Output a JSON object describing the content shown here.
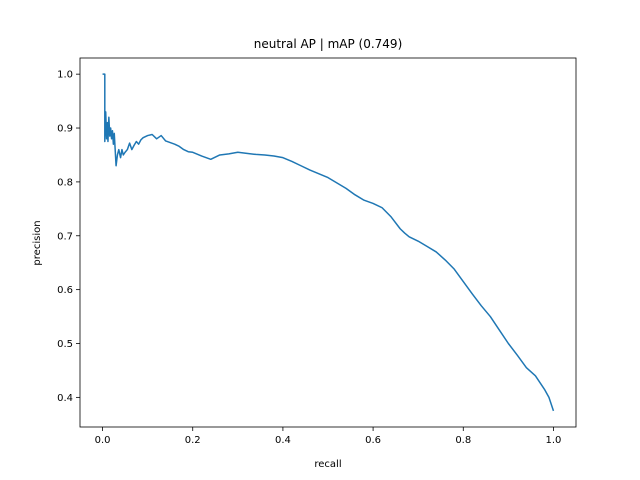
{
  "chart_data": {
    "type": "line",
    "title": "neutral AP | mAP (0.749)",
    "xlabel": "recall",
    "ylabel": "precision",
    "xlim": [
      -0.05,
      1.05
    ],
    "ylim": [
      0.345,
      1.03
    ],
    "xticks": [
      0.0,
      0.2,
      0.4,
      0.6,
      0.8,
      1.0
    ],
    "yticks": [
      0.4,
      0.5,
      0.6,
      0.7,
      0.8,
      0.9,
      1.0
    ],
    "xtick_labels": [
      "0.0",
      "0.2",
      "0.4",
      "0.6",
      "0.8",
      "1.0"
    ],
    "ytick_labels": [
      "0.4",
      "0.5",
      "0.6",
      "0.7",
      "0.8",
      "0.9",
      "1.0"
    ],
    "grid": false,
    "line_color": "#1f77b4",
    "series": [
      {
        "x": [
          0.0,
          0.005,
          0.005,
          0.007,
          0.009,
          0.011,
          0.012,
          0.014,
          0.016,
          0.018,
          0.02,
          0.022,
          0.024,
          0.026,
          0.028,
          0.03,
          0.033,
          0.036,
          0.04,
          0.043,
          0.046,
          0.05,
          0.055,
          0.06,
          0.065,
          0.07,
          0.075,
          0.08,
          0.085,
          0.09,
          0.1,
          0.11,
          0.12,
          0.13,
          0.14,
          0.15,
          0.16,
          0.17,
          0.18,
          0.19,
          0.2,
          0.22,
          0.24,
          0.26,
          0.28,
          0.3,
          0.32,
          0.34,
          0.36,
          0.38,
          0.4,
          0.42,
          0.44,
          0.46,
          0.48,
          0.5,
          0.52,
          0.54,
          0.56,
          0.58,
          0.6,
          0.62,
          0.64,
          0.66,
          0.67,
          0.68,
          0.7,
          0.72,
          0.74,
          0.76,
          0.78,
          0.8,
          0.82,
          0.84,
          0.86,
          0.88,
          0.9,
          0.92,
          0.94,
          0.96,
          0.98,
          0.99,
          1.0
        ],
        "y": [
          1.0,
          1.0,
          0.875,
          0.93,
          0.88,
          0.91,
          0.875,
          0.92,
          0.885,
          0.9,
          0.88,
          0.895,
          0.87,
          0.89,
          0.86,
          0.83,
          0.85,
          0.86,
          0.845,
          0.86,
          0.85,
          0.855,
          0.86,
          0.872,
          0.86,
          0.868,
          0.875,
          0.87,
          0.878,
          0.882,
          0.886,
          0.888,
          0.88,
          0.886,
          0.876,
          0.873,
          0.87,
          0.866,
          0.86,
          0.856,
          0.855,
          0.848,
          0.842,
          0.85,
          0.852,
          0.855,
          0.853,
          0.851,
          0.85,
          0.848,
          0.845,
          0.838,
          0.83,
          0.822,
          0.815,
          0.808,
          0.798,
          0.788,
          0.776,
          0.766,
          0.76,
          0.752,
          0.735,
          0.713,
          0.705,
          0.698,
          0.69,
          0.68,
          0.67,
          0.655,
          0.638,
          0.615,
          0.592,
          0.57,
          0.55,
          0.525,
          0.5,
          0.478,
          0.455,
          0.44,
          0.415,
          0.4,
          0.375
        ]
      }
    ]
  }
}
